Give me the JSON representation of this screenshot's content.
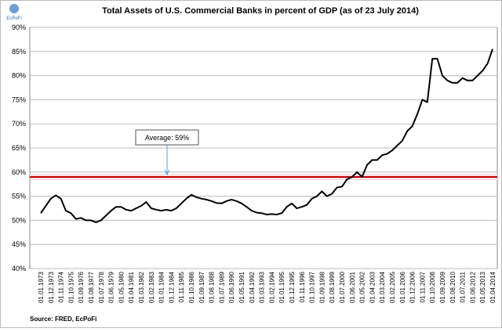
{
  "chart_data": {
    "type": "line",
    "title": "Total Assets of U.S. Commercial Banks in percent of GDP (as of 23 July 2014)",
    "logo": "EcPoFi",
    "source": "Source: FRED, EcPoFi",
    "categories": [
      "01.01.1973",
      null,
      "01.12.1973",
      null,
      "01.11.1974",
      null,
      "01.10.1975",
      null,
      "01.09.1976",
      null,
      "01.08.1977",
      null,
      "01.07.1978",
      null,
      "01.06.1979",
      null,
      "01.05.1980",
      null,
      "01.04.1981",
      null,
      "01.03.1982",
      null,
      "01.02.1983",
      null,
      "01.01.1984",
      null,
      "01.12.1984",
      null,
      "01.11.1985",
      null,
      "01.10.1986",
      null,
      "01.09.1987",
      null,
      "01.08.1988",
      null,
      "01.07.1989",
      null,
      "01.06.1990",
      null,
      "01.05.1991",
      null,
      "01.04.1992",
      null,
      "01.03.1993",
      null,
      "01.02.1994",
      null,
      "01.01.1995",
      null,
      "01.12.1995",
      null,
      "01.11.1996",
      null,
      "01.10.1997",
      null,
      "01.09.1998",
      null,
      "01.08.1999",
      null,
      "01.07.2000",
      null,
      "01.06.2001",
      null,
      "01.05.2002",
      null,
      "01.04.2003",
      null,
      "01.03.2004",
      null,
      "01.02.2005",
      null,
      "01.01.2006",
      null,
      "01.12.2006",
      null,
      "01.11.2007",
      null,
      "01.10.2008",
      null,
      "01.09.2009",
      null,
      "01.08.2010",
      null,
      "01.07.2011",
      null,
      "01.06.2012",
      null,
      "01.05.2013",
      null,
      "01.04.2014"
    ],
    "values": [
      51.5,
      53,
      54.5,
      55.2,
      54.5,
      52,
      51.5,
      50.3,
      50.5,
      50,
      50,
      49.6,
      50,
      51,
      52,
      52.8,
      52.8,
      52.2,
      52,
      52.5,
      53,
      53.8,
      52.5,
      52.2,
      52,
      52.2,
      52,
      52.5,
      53.5,
      54.5,
      55.3,
      54.8,
      54.5,
      54.3,
      54,
      53.6,
      53.5,
      54,
      54.3,
      54,
      53.5,
      52.8,
      52,
      51.6,
      51.5,
      51.2,
      51.3,
      51.2,
      51.5,
      52.8,
      53.5,
      52.5,
      52.8,
      53.2,
      54.5,
      55,
      56,
      55,
      55.5,
      56.8,
      57,
      58.5,
      59,
      60,
      59,
      61.5,
      62.5,
      62.5,
      63.5,
      63.8,
      64.5,
      65.5,
      66.5,
      68.5,
      69.5,
      72,
      75,
      74.5,
      83.5,
      83.5,
      80,
      79,
      78.5,
      78.5,
      79.5,
      79,
      79,
      80,
      81,
      82.5,
      85.5
    ],
    "color": "#000000",
    "average": 59,
    "average_label": "Average: 59%",
    "average_color": "#c00000",
    "ylim": [
      40,
      90
    ],
    "yticks": [
      {
        "value": 40,
        "label": "40%"
      },
      {
        "value": 45,
        "label": "45%"
      },
      {
        "value": 50,
        "label": "50%"
      },
      {
        "value": 55,
        "label": "55%"
      },
      {
        "value": 60,
        "label": "60%"
      },
      {
        "value": 65,
        "label": "65%"
      },
      {
        "value": 70,
        "label": "70%"
      },
      {
        "value": 75,
        "label": "75%"
      },
      {
        "value": 80,
        "label": "80%"
      },
      {
        "value": 85,
        "label": "85%"
      },
      {
        "value": 90,
        "label": "90%"
      }
    ],
    "grid": true
  }
}
